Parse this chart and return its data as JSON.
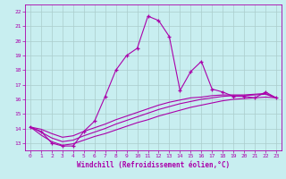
{
  "xlabel": "Windchill (Refroidissement éolien,°C)",
  "bg_color": "#c8eef0",
  "line_color": "#aa00aa",
  "grid_color": "#aacccc",
  "x_data": [
    0,
    1,
    2,
    3,
    4,
    5,
    6,
    7,
    8,
    9,
    10,
    11,
    12,
    13,
    14,
    15,
    16,
    17,
    18,
    19,
    20,
    21,
    22,
    23
  ],
  "y_main": [
    14.1,
    13.8,
    13.0,
    12.8,
    12.8,
    13.8,
    14.5,
    16.2,
    18.0,
    19.0,
    19.5,
    21.7,
    21.4,
    20.3,
    16.6,
    17.9,
    18.6,
    16.7,
    16.5,
    16.2,
    16.2,
    16.1,
    16.5,
    16.1
  ],
  "y_line1": [
    14.1,
    13.55,
    13.1,
    12.85,
    12.95,
    13.2,
    13.45,
    13.65,
    13.9,
    14.15,
    14.4,
    14.6,
    14.85,
    15.05,
    15.25,
    15.45,
    15.6,
    15.75,
    15.9,
    16.0,
    16.05,
    16.1,
    16.15,
    16.1
  ],
  "y_line2": [
    14.1,
    13.75,
    13.35,
    13.1,
    13.2,
    13.5,
    13.75,
    14.0,
    14.3,
    14.55,
    14.8,
    15.05,
    15.3,
    15.5,
    15.7,
    15.85,
    16.0,
    16.1,
    16.2,
    16.25,
    16.25,
    16.3,
    16.35,
    16.1
  ],
  "y_line3": [
    14.1,
    13.95,
    13.65,
    13.4,
    13.5,
    13.8,
    14.05,
    14.3,
    14.6,
    14.85,
    15.1,
    15.35,
    15.6,
    15.8,
    15.95,
    16.1,
    16.15,
    16.25,
    16.3,
    16.3,
    16.3,
    16.35,
    16.4,
    16.1
  ],
  "ylim": [
    12.5,
    22.5
  ],
  "xlim": [
    -0.5,
    23.5
  ],
  "yticks": [
    13,
    14,
    15,
    16,
    17,
    18,
    19,
    20,
    21,
    22
  ],
  "xticks": [
    0,
    1,
    2,
    3,
    4,
    5,
    6,
    7,
    8,
    9,
    10,
    11,
    12,
    13,
    14,
    15,
    16,
    17,
    18,
    19,
    20,
    21,
    22,
    23
  ]
}
